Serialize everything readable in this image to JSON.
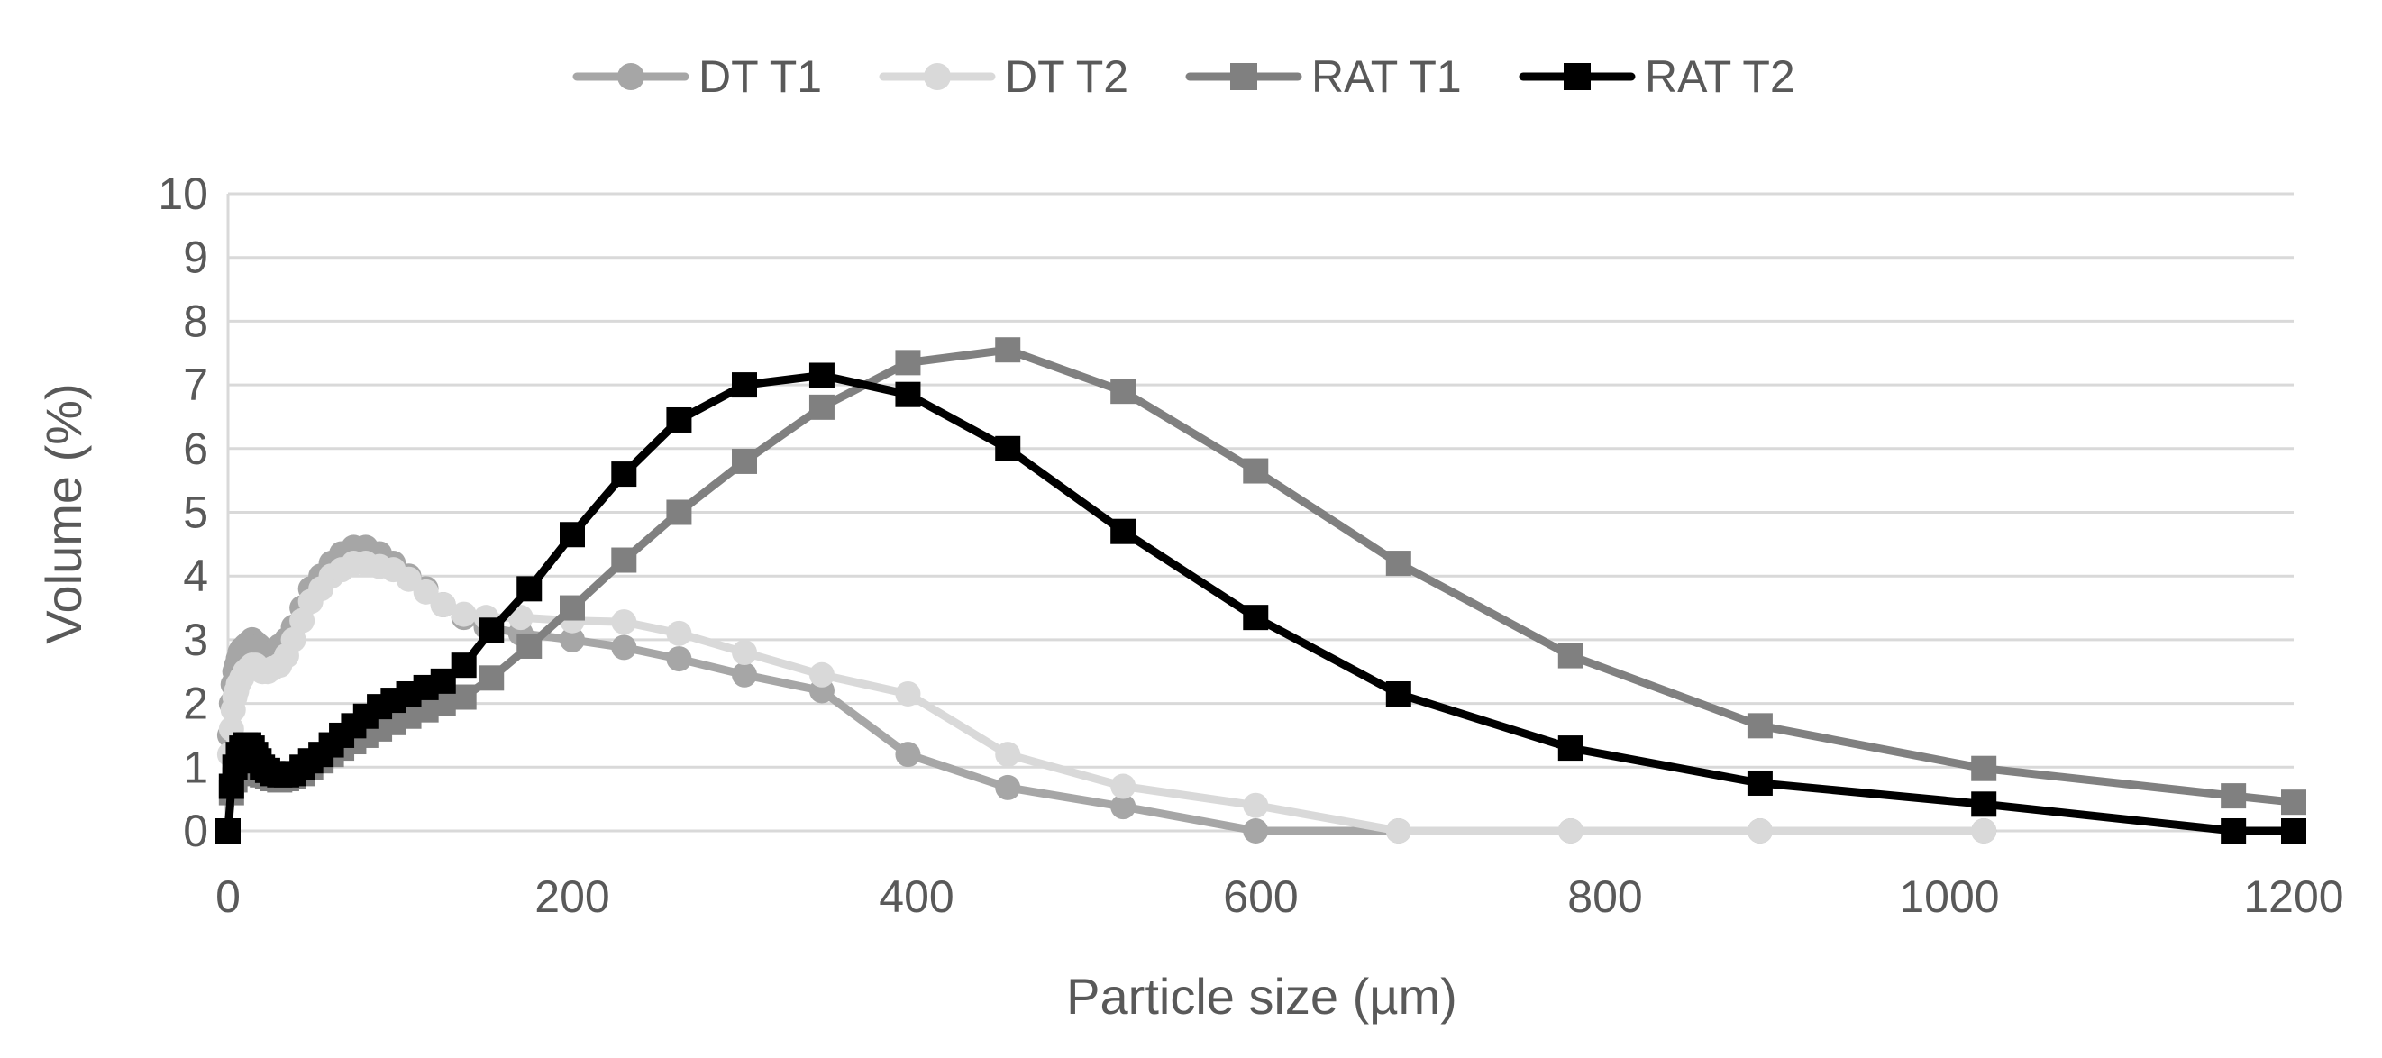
{
  "chart_data": {
    "type": "line",
    "title": "",
    "xlabel": "Particle size (µm)",
    "ylabel": "Volume (%)",
    "xlim": [
      0,
      1200
    ],
    "ylim": [
      0,
      10
    ],
    "xticks": [
      "0",
      "200",
      "400",
      "600",
      "800",
      "1000",
      "1200"
    ],
    "yticks": [
      "0",
      "1",
      "2",
      "3",
      "4",
      "5",
      "6",
      "7",
      "8",
      "9",
      "10"
    ],
    "grid": "horizontal",
    "legend_position": "top",
    "series": [
      {
        "name": "DT T1",
        "color": "#a6a6a6",
        "marker": "circle",
        "x": [
          0,
          1,
          2,
          3,
          4,
          5,
          6,
          7,
          8,
          10,
          12,
          14,
          16,
          18,
          20,
          23,
          26,
          30,
          34,
          38,
          43,
          48,
          54,
          60,
          66,
          73,
          80,
          88,
          96,
          105,
          115,
          125,
          137,
          150,
          170,
          200,
          230,
          262,
          300,
          345,
          395,
          453,
          520,
          597,
          680,
          780,
          890,
          1020
        ],
        "y": [
          0,
          1.5,
          2.0,
          2.3,
          2.5,
          2.6,
          2.7,
          2.8,
          2.85,
          2.9,
          2.95,
          3.0,
          2.95,
          2.9,
          2.85,
          2.8,
          2.8,
          2.9,
          3.0,
          3.2,
          3.5,
          3.8,
          4.0,
          4.2,
          4.35,
          4.45,
          4.45,
          4.35,
          4.2,
          4.0,
          3.8,
          3.55,
          3.35,
          3.2,
          3.1,
          3.0,
          2.88,
          2.7,
          2.45,
          2.2,
          1.2,
          0.68,
          0.38,
          0.0,
          0.0,
          0.0,
          0.0,
          0.0
        ]
      },
      {
        "name": "DT T2",
        "color": "#d9d9d9",
        "marker": "circle",
        "x": [
          0,
          1,
          2,
          3,
          4,
          5,
          6,
          8,
          10,
          12,
          14,
          16,
          18,
          20,
          23,
          26,
          30,
          34,
          38,
          43,
          48,
          54,
          60,
          66,
          73,
          80,
          88,
          96,
          105,
          115,
          125,
          137,
          150,
          170,
          200,
          230,
          262,
          300,
          345,
          395,
          453,
          520,
          597,
          680,
          780,
          890,
          1020
        ],
        "y": [
          0,
          1.2,
          1.6,
          1.9,
          2.1,
          2.2,
          2.3,
          2.4,
          2.5,
          2.55,
          2.6,
          2.6,
          2.55,
          2.5,
          2.5,
          2.55,
          2.6,
          2.75,
          3.0,
          3.3,
          3.6,
          3.8,
          4.0,
          4.1,
          4.2,
          4.2,
          4.15,
          4.1,
          3.95,
          3.75,
          3.55,
          3.4,
          3.35,
          3.35,
          3.3,
          3.28,
          3.1,
          2.8,
          2.45,
          2.15,
          1.2,
          0.7,
          0.4,
          0.0,
          0.0,
          0.0,
          0.0
        ]
      },
      {
        "name": "RAT T1",
        "color": "#808080",
        "marker": "square",
        "x": [
          0,
          2,
          4,
          6,
          8,
          10,
          12,
          14,
          16,
          18,
          20,
          23,
          26,
          30,
          34,
          38,
          43,
          48,
          54,
          60,
          66,
          73,
          80,
          88,
          96,
          105,
          115,
          125,
          137,
          153,
          175,
          200,
          230,
          262,
          300,
          345,
          395,
          453,
          520,
          597,
          680,
          780,
          890,
          1020,
          1165,
          1200
        ],
        "y": [
          0,
          0.6,
          0.8,
          1.0,
          1.1,
          1.15,
          1.1,
          1.0,
          0.95,
          0.9,
          0.88,
          0.85,
          0.82,
          0.8,
          0.82,
          0.85,
          0.9,
          1.0,
          1.1,
          1.2,
          1.3,
          1.4,
          1.5,
          1.6,
          1.7,
          1.8,
          1.9,
          2.0,
          2.1,
          2.4,
          2.9,
          3.5,
          4.25,
          5.0,
          5.8,
          6.65,
          7.35,
          7.55,
          6.9,
          5.65,
          4.2,
          2.75,
          1.65,
          0.98,
          0.55,
          0.45
        ]
      },
      {
        "name": "RAT T2",
        "color": "#000000",
        "marker": "square",
        "x": [
          0,
          2,
          4,
          6,
          8,
          10,
          12,
          14,
          16,
          18,
          20,
          23,
          26,
          30,
          34,
          38,
          43,
          48,
          54,
          60,
          66,
          73,
          80,
          88,
          96,
          105,
          115,
          125,
          137,
          153,
          175,
          200,
          230,
          262,
          300,
          345,
          395,
          453,
          520,
          597,
          680,
          780,
          890,
          1020,
          1165,
          1200
        ],
        "y": [
          0,
          0.7,
          1.0,
          1.2,
          1.3,
          1.35,
          1.35,
          1.3,
          1.2,
          1.1,
          1.0,
          0.95,
          0.9,
          0.88,
          0.88,
          0.9,
          1.0,
          1.1,
          1.2,
          1.35,
          1.5,
          1.65,
          1.8,
          1.95,
          2.05,
          2.15,
          2.25,
          2.35,
          2.6,
          3.15,
          3.8,
          4.65,
          5.6,
          6.45,
          7.0,
          7.15,
          6.85,
          6.0,
          4.7,
          3.35,
          2.15,
          1.3,
          0.75,
          0.42,
          0.0,
          0.0
        ]
      }
    ]
  }
}
